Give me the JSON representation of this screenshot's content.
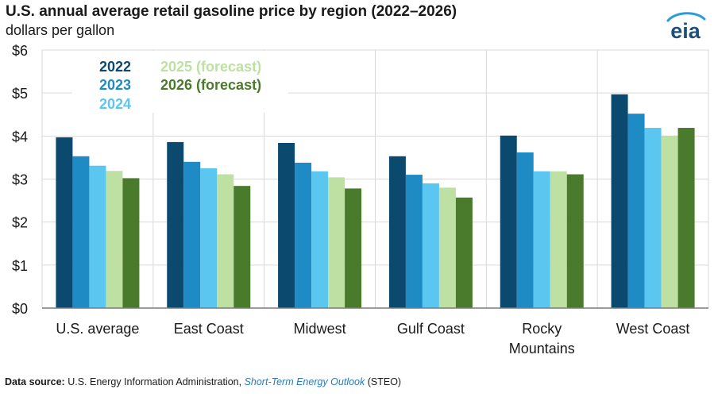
{
  "title": "U.S. annual average retail gasoline price by region (2022–2026)",
  "subtitle": "dollars per gallon",
  "logo_text": "eia",
  "source": {
    "label": "Data source:",
    "text_before": "U.S. Energy Information Administration,",
    "link_text": "Short-Term Energy Outlook",
    "text_after": "(STEO)"
  },
  "colors": {
    "2022": "#0b4a6e",
    "2023": "#1f8bc4",
    "2024": "#5bc6f0",
    "2025": "#bfe0a3",
    "2026": "#4a7a2c",
    "grid": "#d9d9d9",
    "axis": "#7a7a7a"
  },
  "chart_data": {
    "type": "bar",
    "title": "U.S. annual average retail gasoline price by region (2022–2026)",
    "ylabel": "dollars per gallon",
    "ylim": [
      0,
      6
    ],
    "yticks": [
      "$0",
      "$1",
      "$2",
      "$3",
      "$4",
      "$5",
      "$6"
    ],
    "grid": true,
    "legend_position": "top-left",
    "categories": [
      "U.S. average",
      "East Coast",
      "Midwest",
      "Gulf Coast",
      "Rocky\nMountains",
      "West Coast"
    ],
    "series": [
      {
        "name": "2022",
        "values": [
          3.97,
          3.86,
          3.84,
          3.53,
          4.01,
          4.97
        ]
      },
      {
        "name": "2023",
        "values": [
          3.53,
          3.4,
          3.38,
          3.1,
          3.62,
          4.52
        ]
      },
      {
        "name": "2024",
        "values": [
          3.31,
          3.25,
          3.18,
          2.9,
          3.18,
          4.19
        ]
      },
      {
        "name": "2025 (forecast)",
        "values": [
          3.19,
          3.11,
          3.04,
          2.8,
          3.18,
          4.01
        ]
      },
      {
        "name": "2026 (forecast)",
        "values": [
          3.02,
          2.84,
          2.78,
          2.57,
          3.11,
          4.19
        ]
      }
    ]
  }
}
